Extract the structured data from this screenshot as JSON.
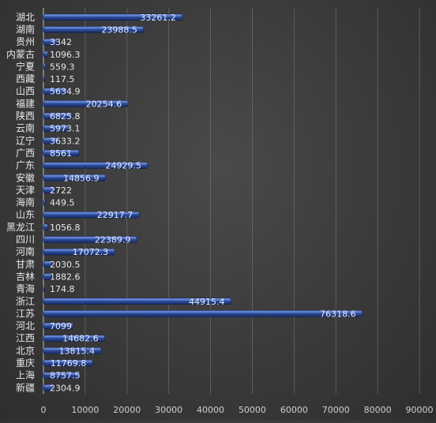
{
  "chart_data": {
    "type": "bar",
    "orientation": "horizontal",
    "categories": [
      "湖北",
      "湖南",
      "贵州",
      "内蒙古",
      "宁夏",
      "西藏",
      "山西",
      "福建",
      "陕西",
      "云南",
      "辽宁",
      "广西",
      "广东",
      "安徽",
      "天津",
      "海南",
      "山东",
      "黑龙江",
      "四川",
      "河南",
      "甘肃",
      "吉林",
      "青海",
      "浙江",
      "江苏",
      "河北",
      "江西",
      "北京",
      "重庆",
      "上海",
      "新疆"
    ],
    "values": [
      33261.2,
      23988.5,
      3342,
      1096.3,
      559.3,
      117.5,
      5634.9,
      20254.6,
      6825.8,
      5973.1,
      3633.2,
      8561,
      24929.5,
      14856.9,
      2722,
      449.5,
      22917.7,
      1056.8,
      22389.9,
      17072.3,
      2030.5,
      1882.6,
      174.8,
      44915.4,
      76318.6,
      7099,
      14682.6,
      13815.4,
      11769.8,
      8757.5,
      2304.9
    ],
    "xlim": [
      0,
      90000
    ],
    "xticks": [
      0,
      10000,
      20000,
      30000,
      40000,
      50000,
      60000,
      70000,
      80000,
      90000
    ],
    "title": "",
    "xlabel": "",
    "ylabel": "",
    "grid": "vertical",
    "legend": "none",
    "bar_color": "#2e4f9e",
    "bar_highlight": "#6f8fe0",
    "grid_color": "#8a8a8a",
    "text_color": "#e8e8e8",
    "axis_text_color": "#d0d0d0"
  }
}
